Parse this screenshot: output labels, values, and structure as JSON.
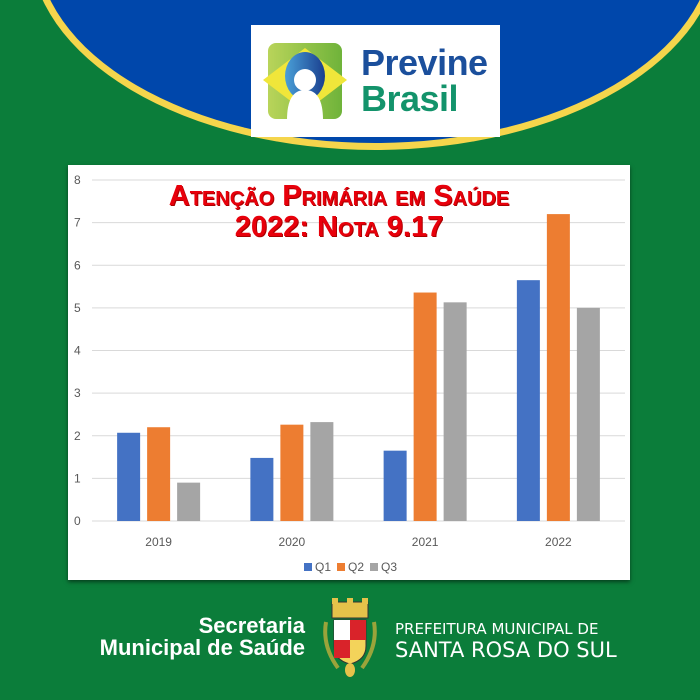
{
  "logo": {
    "line1": "Previne",
    "line2": "Brasil"
  },
  "chart_data": {
    "type": "bar",
    "title": "Atenção Primária em Saúde",
    "subtitle": "2022: Nota 9.17",
    "categories": [
      "2019",
      "2020",
      "2021",
      "2022"
    ],
    "series": [
      {
        "name": "Q1",
        "color": "#4472c4",
        "values": [
          2.07,
          1.48,
          1.65,
          5.65
        ]
      },
      {
        "name": "Q2",
        "color": "#ed7d31",
        "values": [
          2.2,
          2.26,
          5.36,
          7.2
        ]
      },
      {
        "name": "Q3",
        "color": "#a5a5a5",
        "values": [
          0.9,
          2.32,
          5.13,
          5.0
        ]
      }
    ],
    "ylim": [
      0,
      8
    ],
    "yticks": [
      "0",
      "1",
      "2",
      "3",
      "4",
      "5",
      "6",
      "7",
      "8"
    ],
    "grid": true,
    "legend": "bottom",
    "xlabel": "",
    "ylabel": ""
  },
  "footer": {
    "left_line1": "Secretaria",
    "left_line2": "Municipal de Saúde",
    "right_line1": "PREFEITURA MUNICIPAL DE",
    "right_line2": "SANTA ROSA DO SUL",
    "crest_text": "SANTA ROSA DO SUL"
  }
}
